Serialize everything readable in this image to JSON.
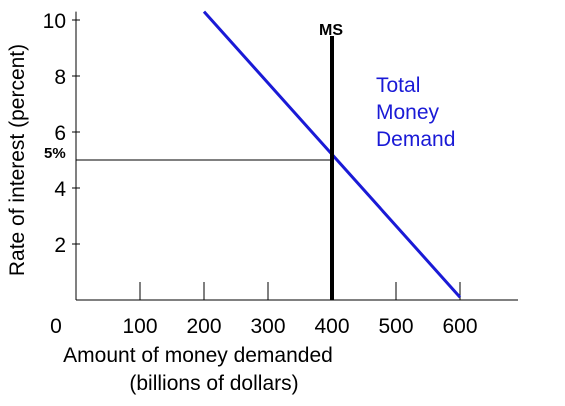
{
  "chart_data": {
    "type": "line",
    "title": "",
    "xlabel": "Amount of money demanded",
    "xlabel_line2": "(billions of dollars)",
    "ylabel": "Rate of interest (percent)",
    "xlim": [
      0,
      700
    ],
    "ylim": [
      0,
      10.3
    ],
    "x_ticks": [
      {
        "value": 0,
        "label": "0"
      },
      {
        "value": 100,
        "label": "100"
      },
      {
        "value": 200,
        "label": "200"
      },
      {
        "value": 300,
        "label": "300"
      },
      {
        "value": 400,
        "label": "400"
      },
      {
        "value": 500,
        "label": "500"
      },
      {
        "value": 600,
        "label": "600"
      }
    ],
    "y_ticks": [
      {
        "value": 2,
        "label": "2"
      },
      {
        "value": 4,
        "label": "4"
      },
      {
        "value": 6,
        "label": "6"
      },
      {
        "value": 8,
        "label": "8"
      },
      {
        "value": 10,
        "label": "10"
      }
    ],
    "grid": false,
    "series": [
      {
        "name": "Total Money Demand",
        "label_lines": [
          "Total",
          "Money",
          "Demand"
        ],
        "color": "#1a1ad6",
        "x": [
          200,
          600
        ],
        "y": [
          10.3,
          0.1
        ]
      },
      {
        "name": "MS",
        "color": "#000000",
        "x": [
          400,
          400
        ],
        "y": [
          0,
          10
        ]
      }
    ],
    "reference": {
      "y": 5,
      "label": "5%"
    }
  }
}
